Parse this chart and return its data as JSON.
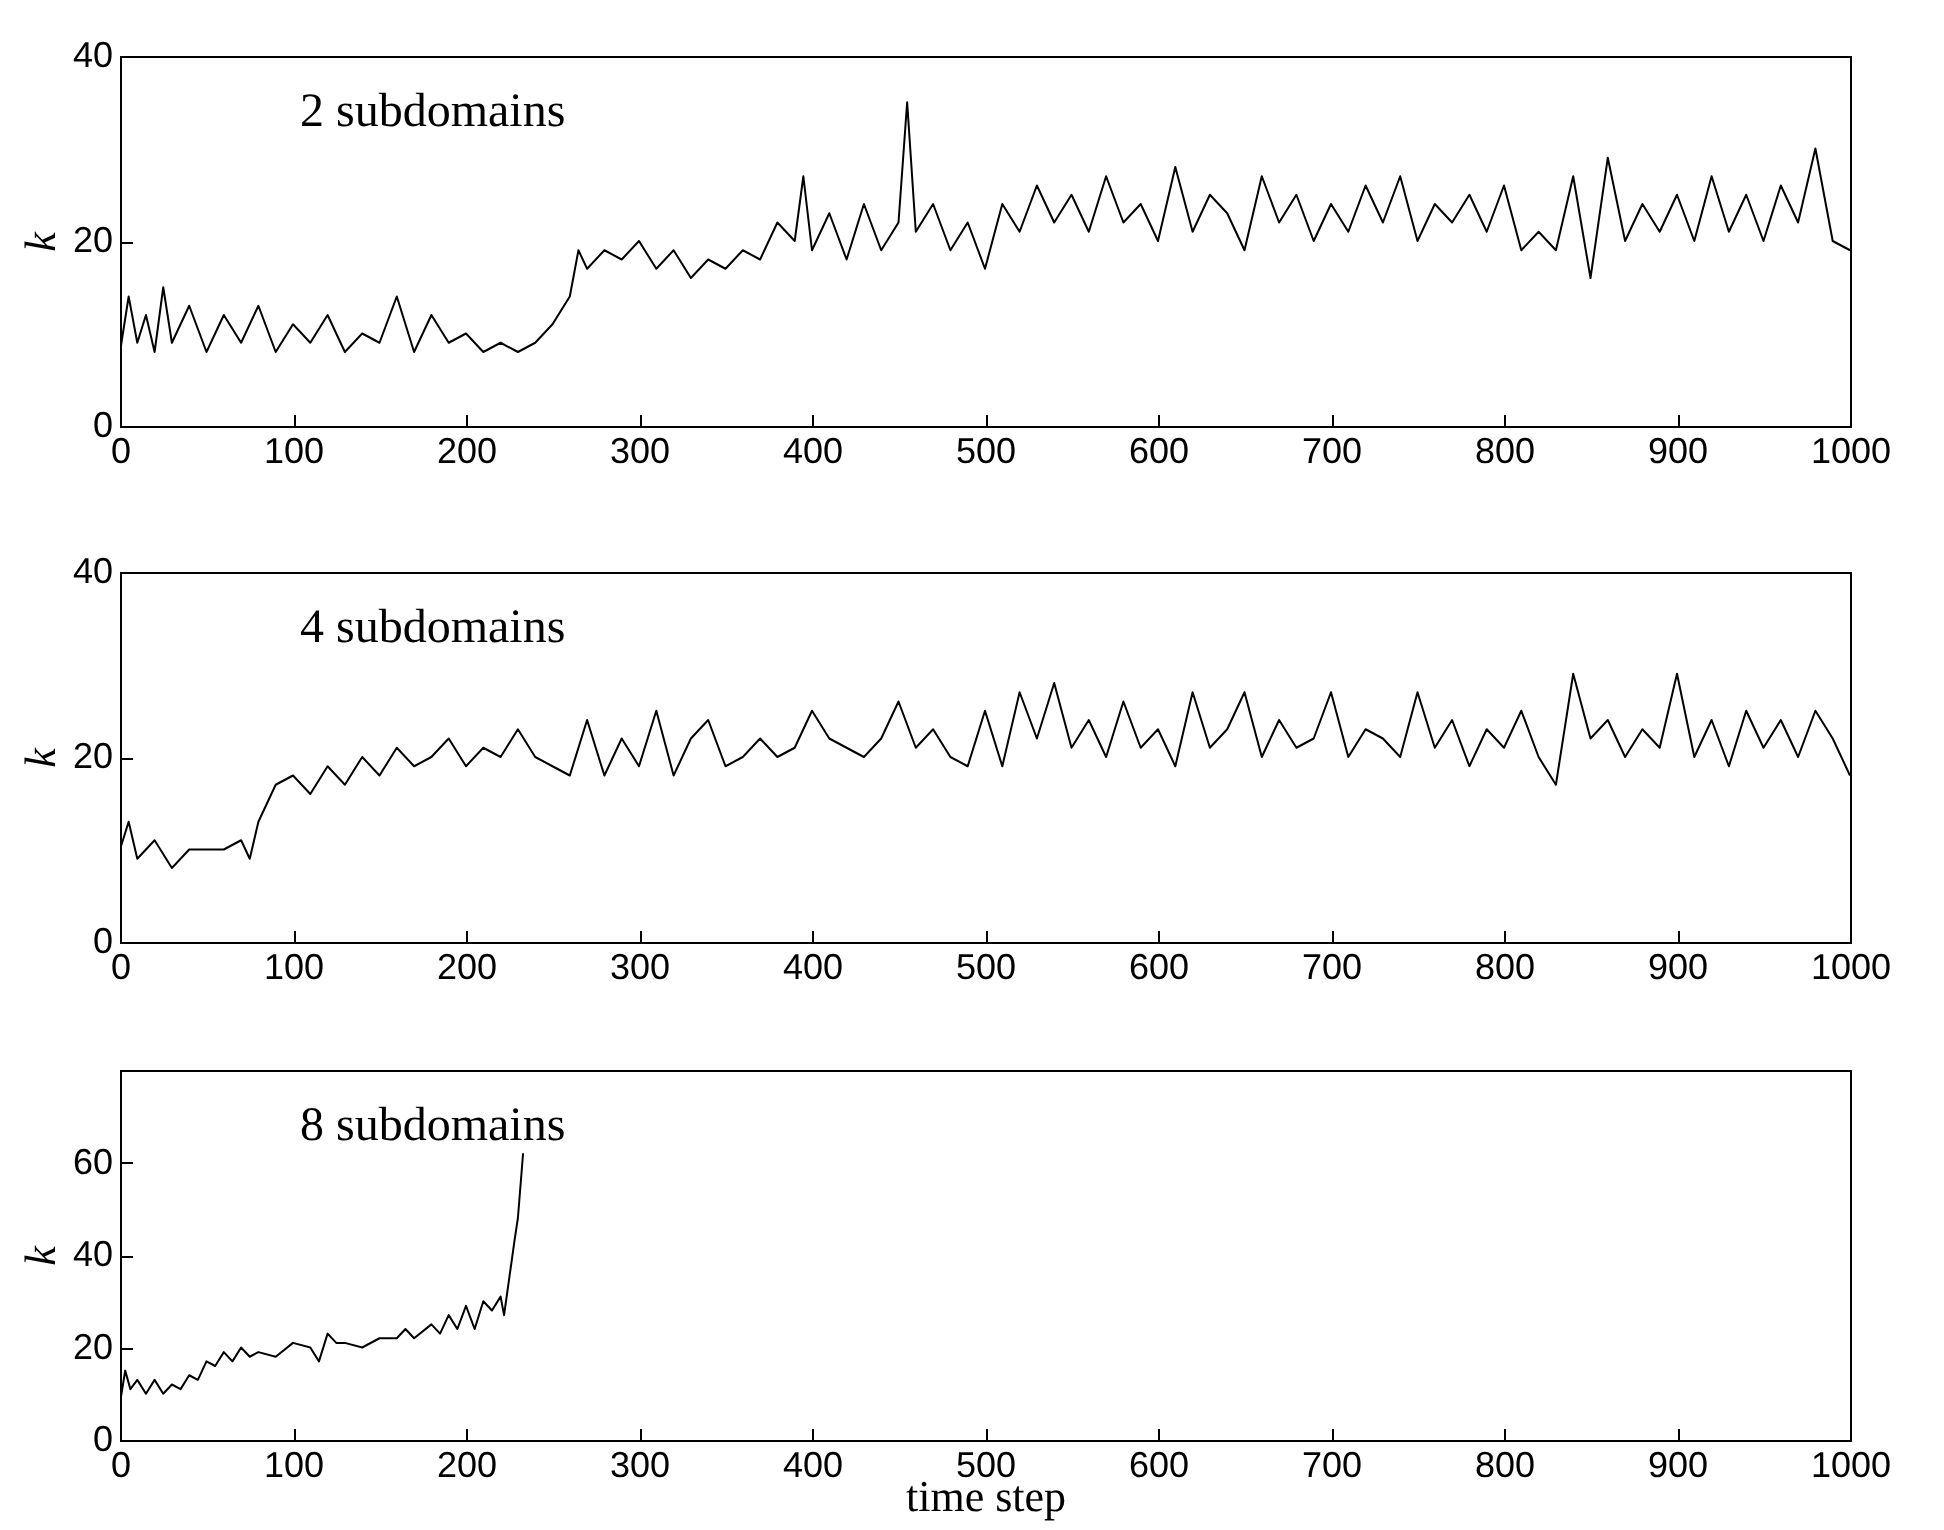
{
  "chart_data": [
    {
      "type": "line",
      "ylabel": "k",
      "annotations": [
        "2 subdomains"
      ],
      "xlim": [
        0,
        1000
      ],
      "xticks": [
        0,
        100,
        200,
        300,
        400,
        500,
        600,
        700,
        800,
        900,
        1000
      ],
      "ylim": [
        0,
        40
      ],
      "yticks": [
        0,
        20,
        40
      ],
      "series": [
        {
          "color": "#000000",
          "x": [
            0,
            5,
            10,
            15,
            20,
            25,
            30,
            40,
            50,
            60,
            70,
            80,
            90,
            100,
            110,
            120,
            130,
            140,
            150,
            160,
            170,
            180,
            190,
            200,
            210,
            220,
            230,
            240,
            250,
            260,
            265,
            270,
            280,
            290,
            300,
            310,
            320,
            330,
            340,
            350,
            360,
            370,
            380,
            390,
            395,
            400,
            410,
            420,
            430,
            440,
            450,
            455,
            460,
            470,
            480,
            490,
            500,
            510,
            520,
            530,
            540,
            550,
            560,
            570,
            580,
            590,
            600,
            610,
            620,
            630,
            640,
            650,
            660,
            670,
            680,
            690,
            700,
            710,
            720,
            730,
            740,
            750,
            760,
            770,
            780,
            790,
            800,
            810,
            820,
            830,
            840,
            850,
            860,
            870,
            880,
            890,
            900,
            910,
            920,
            930,
            940,
            950,
            960,
            970,
            980,
            990,
            1000
          ],
          "values": [
            8,
            14,
            9,
            12,
            8,
            15,
            9,
            13,
            8,
            12,
            9,
            13,
            8,
            11,
            9,
            12,
            8,
            10,
            9,
            14,
            8,
            12,
            9,
            10,
            8,
            9,
            8,
            9,
            11,
            14,
            19,
            17,
            19,
            18,
            20,
            17,
            19,
            16,
            18,
            17,
            19,
            18,
            22,
            20,
            27,
            19,
            23,
            18,
            24,
            19,
            22,
            35,
            21,
            24,
            19,
            22,
            17,
            24,
            21,
            26,
            22,
            25,
            21,
            27,
            22,
            24,
            20,
            28,
            21,
            25,
            23,
            19,
            27,
            22,
            25,
            20,
            24,
            21,
            26,
            22,
            27,
            20,
            24,
            22,
            25,
            21,
            26,
            19,
            21,
            19,
            27,
            16,
            29,
            20,
            24,
            21,
            25,
            20,
            27,
            21,
            25,
            20,
            26,
            22,
            30,
            20,
            19
          ]
        }
      ]
    },
    {
      "type": "line",
      "ylabel": "k",
      "annotations": [
        "4 subdomains"
      ],
      "xlim": [
        0,
        1000
      ],
      "xticks": [
        0,
        100,
        200,
        300,
        400,
        500,
        600,
        700,
        800,
        900,
        1000
      ],
      "ylim": [
        0,
        40
      ],
      "yticks": [
        0,
        20,
        40
      ],
      "series": [
        {
          "color": "#000000",
          "x": [
            0,
            5,
            10,
            20,
            30,
            40,
            50,
            60,
            70,
            75,
            80,
            90,
            100,
            110,
            120,
            130,
            140,
            150,
            160,
            170,
            180,
            190,
            200,
            210,
            220,
            230,
            240,
            250,
            260,
            270,
            280,
            290,
            300,
            310,
            320,
            330,
            340,
            350,
            360,
            370,
            380,
            390,
            400,
            410,
            420,
            430,
            440,
            450,
            460,
            470,
            480,
            490,
            500,
            510,
            520,
            530,
            540,
            550,
            560,
            570,
            580,
            590,
            600,
            610,
            620,
            630,
            640,
            650,
            660,
            670,
            680,
            690,
            700,
            710,
            720,
            730,
            740,
            750,
            760,
            770,
            780,
            790,
            800,
            810,
            820,
            830,
            840,
            850,
            860,
            870,
            880,
            890,
            900,
            910,
            920,
            930,
            940,
            950,
            960,
            970,
            980,
            990,
            1000
          ],
          "values": [
            10,
            13,
            9,
            11,
            8,
            10,
            10,
            10,
            11,
            9,
            13,
            17,
            18,
            16,
            19,
            17,
            20,
            18,
            21,
            19,
            20,
            22,
            19,
            21,
            20,
            23,
            20,
            19,
            18,
            24,
            18,
            22,
            19,
            25,
            18,
            22,
            24,
            19,
            20,
            22,
            20,
            21,
            25,
            22,
            21,
            20,
            22,
            26,
            21,
            23,
            20,
            19,
            25,
            19,
            27,
            22,
            28,
            21,
            24,
            20,
            26,
            21,
            23,
            19,
            27,
            21,
            23,
            27,
            20,
            24,
            21,
            22,
            27,
            20,
            23,
            22,
            20,
            27,
            21,
            24,
            19,
            23,
            21,
            25,
            20,
            17,
            29,
            22,
            24,
            20,
            23,
            21,
            29,
            20,
            24,
            19,
            25,
            21,
            24,
            20,
            25,
            22,
            18
          ]
        }
      ]
    },
    {
      "type": "line",
      "ylabel": "k",
      "xlabel": "time step",
      "annotations": [
        "8 subdomains"
      ],
      "xlim": [
        0,
        1000
      ],
      "xticks": [
        0,
        100,
        200,
        300,
        400,
        500,
        600,
        700,
        800,
        900,
        1000
      ],
      "ylim": [
        0,
        80
      ],
      "yticks": [
        0,
        20,
        40,
        60
      ],
      "series": [
        {
          "color": "#000000",
          "x": [
            0,
            3,
            6,
            10,
            15,
            20,
            25,
            30,
            35,
            40,
            45,
            50,
            55,
            60,
            65,
            70,
            75,
            80,
            90,
            100,
            110,
            115,
            120,
            125,
            130,
            140,
            150,
            160,
            165,
            170,
            180,
            185,
            190,
            195,
            200,
            205,
            210,
            215,
            220,
            222,
            225,
            228,
            230,
            233
          ],
          "values": [
            8,
            15,
            11,
            13,
            10,
            13,
            10,
            12,
            11,
            14,
            13,
            17,
            16,
            19,
            17,
            20,
            18,
            19,
            18,
            21,
            20,
            17,
            23,
            21,
            21,
            20,
            22,
            22,
            24,
            22,
            25,
            23,
            27,
            24,
            29,
            24,
            30,
            28,
            31,
            27,
            35,
            43,
            48,
            62
          ]
        }
      ]
    }
  ]
}
